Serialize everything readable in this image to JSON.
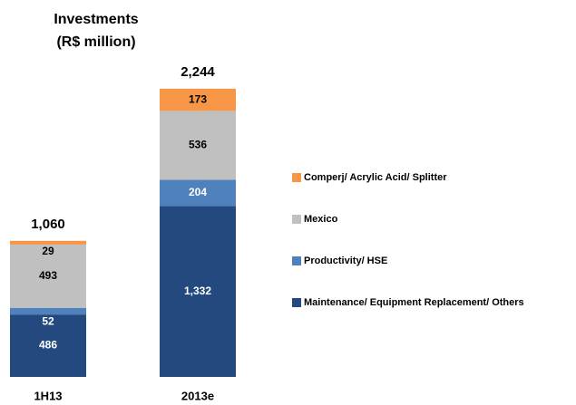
{
  "chart_data": {
    "type": "stacked_bar",
    "title": "Investments",
    "subtitle": "(R$ million)",
    "categories": [
      "1H13",
      "2013e"
    ],
    "series": [
      {
        "name": "Maintenance/ Equipment Replacement/ Others",
        "color": "#23497e",
        "label_color": "#ffffff",
        "values": [
          486,
          1332
        ],
        "value_labels": [
          "486",
          "1,332"
        ]
      },
      {
        "name": "Productivity/ HSE",
        "color": "#4f81bd",
        "label_color": "#ffffff",
        "values": [
          52,
          204
        ]
      },
      {
        "name": "Mexico",
        "color": "#c0c0c0",
        "label_color": "#000000",
        "values": [
          493,
          536
        ]
      },
      {
        "name": "Comperj/ Acrylic Acid/ Splitter",
        "color": "#f79646",
        "label_color": "#000000",
        "values": [
          29,
          173
        ]
      }
    ],
    "totals": [
      1060,
      2244
    ],
    "total_labels": [
      "1,060",
      "2,244"
    ]
  }
}
